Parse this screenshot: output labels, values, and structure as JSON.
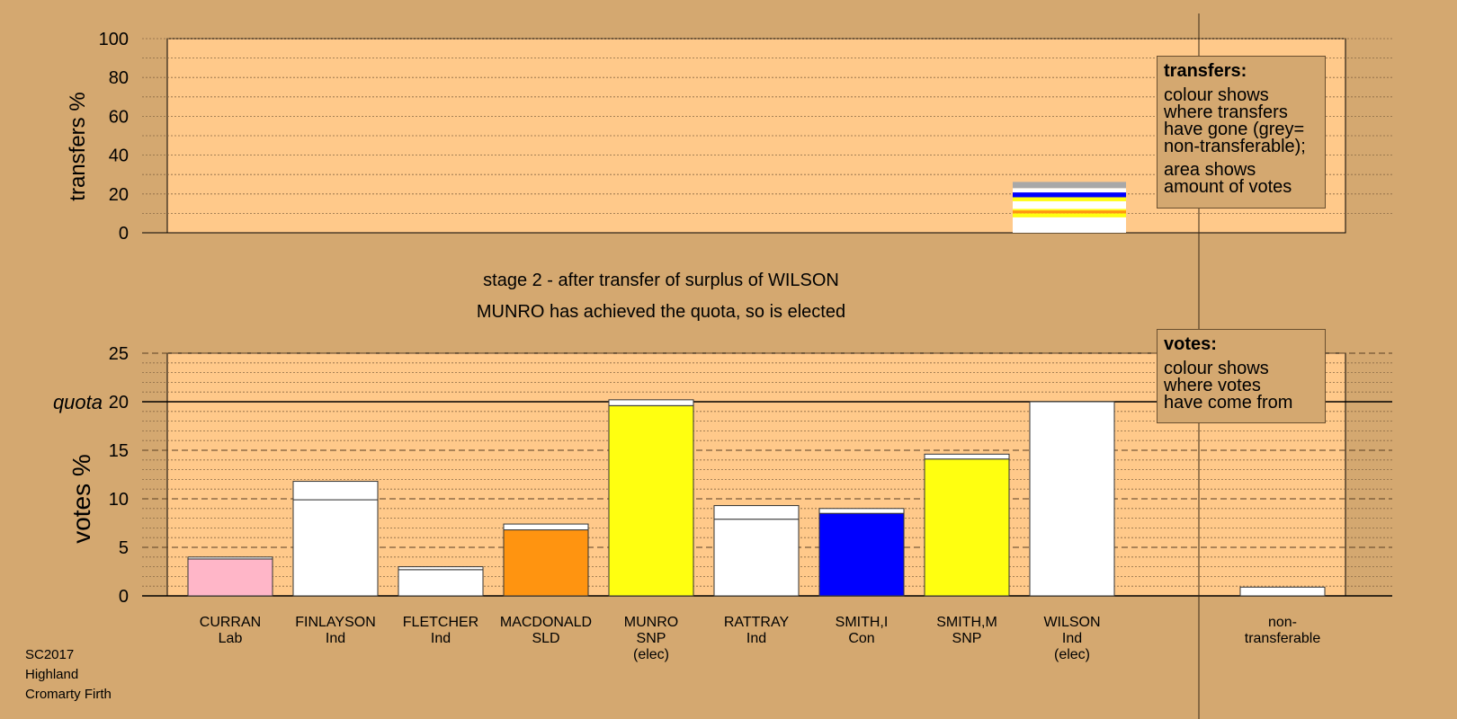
{
  "colors": {
    "background": "#D4A870",
    "plot_background": "#FFC98A",
    "Lab": "#FFB6C8",
    "Ind": "#FFFFFF",
    "SLD": "#FF9410",
    "SNP": "#FFFF10",
    "Con": "#0000FF",
    "Grey": "#A8A8A8"
  },
  "legend_transfers": {
    "title": "transfers:",
    "lines1": [
      "colour shows",
      "where transfers",
      "have gone (grey=",
      "non-transferable);"
    ],
    "lines2": [
      "area shows",
      "amount of votes"
    ]
  },
  "legend_votes": {
    "title": "votes:",
    "lines": [
      "colour shows",
      "where votes",
      "have come from"
    ]
  },
  "footer": {
    "line1": "SC2017",
    "line2": "Highland",
    "line3": "Cromarty Firth"
  },
  "chart_data": [
    {
      "type": "bar",
      "chart": "transfers",
      "ylabel": "transfers %",
      "ylim": [
        0,
        100
      ],
      "yticks": [
        0,
        20,
        40,
        60,
        80,
        100
      ],
      "grid": "dotted every 10",
      "stack_from": "WILSON",
      "stack": [
        {
          "party": "Ind",
          "value": 8.0
        },
        {
          "party": "SNP",
          "value": 2.0
        },
        {
          "party": "SLD",
          "value": 1.5
        },
        {
          "party": "SNP",
          "value": 0.8
        },
        {
          "party": "Ind",
          "value": 4.0
        },
        {
          "party": "SNP",
          "value": 2.0
        },
        {
          "party": "Con",
          "value": 2.5
        },
        {
          "party": "Ind",
          "value": 2.2
        },
        {
          "party": "Grey",
          "value": 3.2
        }
      ]
    },
    {
      "type": "bar",
      "chart": "votes",
      "title_lines": [
        "stage 2 - after transfer of surplus of WILSON",
        "MUNRO has achieved the quota, so is elected"
      ],
      "ylabel": "votes %",
      "ylim": [
        0,
        25
      ],
      "yticks": [
        0,
        5,
        10,
        15,
        20,
        25
      ],
      "quota_label": "quota",
      "quota": 20,
      "grid": "dotted every 1, dashed every 5",
      "candidates": [
        {
          "name": "CURRAN",
          "party": "Lab",
          "status": "",
          "first": 3.8,
          "transfer": 0.2
        },
        {
          "name": "FINLAYSON",
          "party": "Ind",
          "status": "",
          "first": 9.9,
          "transfer": 1.9
        },
        {
          "name": "FLETCHER",
          "party": "Ind",
          "status": "",
          "first": 2.7,
          "transfer": 0.3
        },
        {
          "name": "MACDONALD",
          "party": "SLD",
          "status": "",
          "first": 6.8,
          "transfer": 0.6
        },
        {
          "name": "MUNRO",
          "party": "SNP",
          "status": "(elec)",
          "first": 19.6,
          "transfer": 0.6
        },
        {
          "name": "RATTRAY",
          "party": "Ind",
          "status": "",
          "first": 7.9,
          "transfer": 1.4
        },
        {
          "name": "SMITH,I",
          "party": "Con",
          "status": "",
          "first": 8.5,
          "transfer": 0.5
        },
        {
          "name": "SMITH,M",
          "party": "SNP",
          "status": "",
          "first": 14.1,
          "transfer": 0.5
        },
        {
          "name": "WILSON",
          "party": "Ind",
          "status": "(elec)",
          "first": 20.0,
          "transfer": 0
        }
      ],
      "nontransferable": {
        "label1": "non-",
        "label2": "transferable",
        "value": 0.9
      }
    }
  ]
}
